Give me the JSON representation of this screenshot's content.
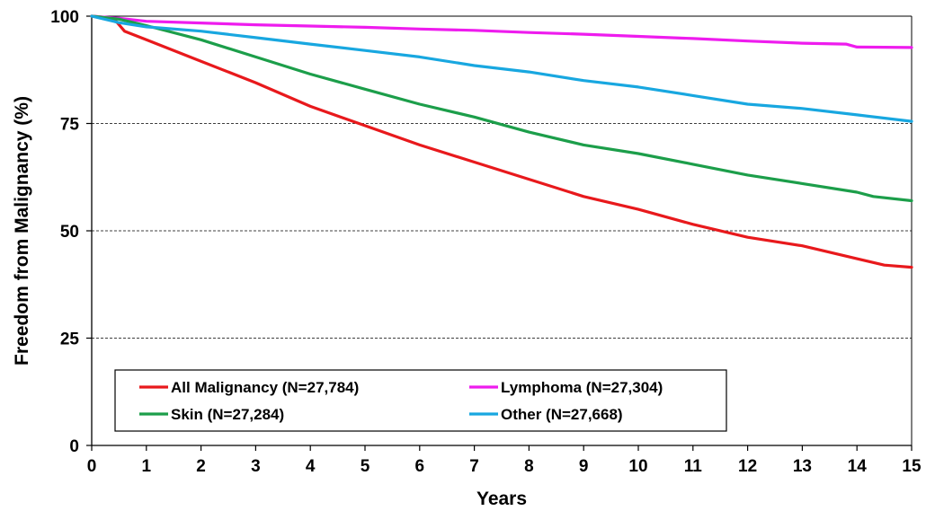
{
  "chart_data": {
    "type": "line",
    "title": "",
    "xlabel": "Years",
    "ylabel": "Freedom from Malignancy (%)",
    "xlim": [
      0,
      15
    ],
    "ylim": [
      0,
      100
    ],
    "x_ticks": [
      "0",
      "1",
      "2",
      "3",
      "4",
      "5",
      "6",
      "7",
      "8",
      "9",
      "10",
      "11",
      "12",
      "13",
      "14",
      "15"
    ],
    "y_ticks": [
      "0",
      "25",
      "50",
      "75",
      "100"
    ],
    "grid": "horizontal dashed at 25, 50, 75",
    "legend_position": "bottom-left",
    "series": [
      {
        "name": "All Malignancy (N=27,784)",
        "color": "#e8191c",
        "x": [
          0,
          0.4,
          0.6,
          1,
          2,
          3,
          4,
          5,
          6,
          7,
          8,
          9,
          10,
          11,
          12,
          13,
          14,
          14.5,
          15
        ],
        "y": [
          100,
          99.5,
          96.5,
          94.5,
          89.5,
          84.5,
          79,
          74.5,
          70,
          66,
          62,
          58,
          55,
          51.5,
          48.5,
          46.5,
          43.5,
          42,
          41.5
        ]
      },
      {
        "name": "Lymphoma (N=27,304)",
        "color": "#ee1cee",
        "x": [
          0,
          0.5,
          1,
          2,
          3,
          4,
          5,
          6,
          7,
          8,
          9,
          10,
          11,
          12,
          13,
          13.8,
          14,
          15
        ],
        "y": [
          100,
          99.5,
          98.8,
          98.4,
          98,
          97.7,
          97.4,
          97,
          96.7,
          96.2,
          95.8,
          95.3,
          94.8,
          94.2,
          93.7,
          93.5,
          92.8,
          92.7
        ]
      },
      {
        "name": "Skin (N=27,284)",
        "color": "#1c9e4a",
        "x": [
          0,
          0.5,
          1,
          2,
          3,
          4,
          5,
          6,
          7,
          8,
          9,
          10,
          11,
          12,
          13,
          14,
          14.3,
          15
        ],
        "y": [
          100,
          99.3,
          97.8,
          94.5,
          90.5,
          86.5,
          83,
          79.5,
          76.5,
          73,
          70,
          68,
          65.5,
          63,
          61,
          59,
          58,
          57
        ]
      },
      {
        "name": "Other (N=27,668)",
        "color": "#18a7e0",
        "x": [
          0,
          0.5,
          1,
          2,
          3,
          4,
          5,
          6,
          7,
          8,
          9,
          10,
          11,
          12,
          13,
          14,
          15
        ],
        "y": [
          100,
          98.5,
          97.5,
          96.5,
          95,
          93.5,
          92,
          90.5,
          88.5,
          87,
          85,
          83.5,
          81.5,
          79.5,
          78.5,
          77,
          75.5
        ]
      }
    ]
  }
}
